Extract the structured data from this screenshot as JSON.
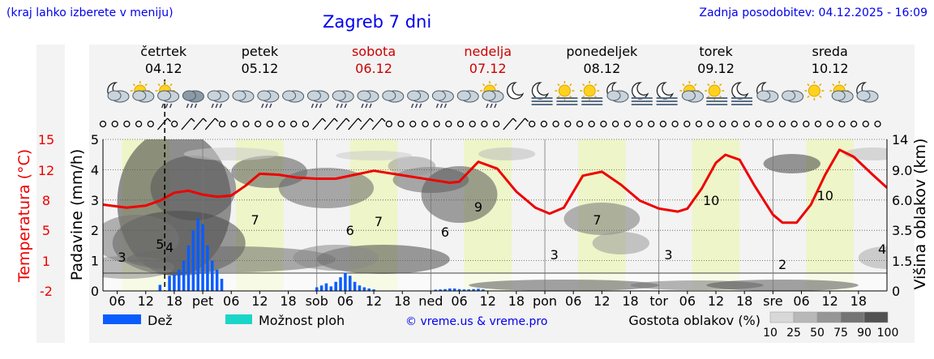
{
  "header": {
    "left_note": "(kraj lahko izberete v meniju)",
    "title": "Zagreb 7 dni",
    "updated": "Zadnja posodobitev: 04.12.2025 - 16:09"
  },
  "days": [
    {
      "name": "četrtek",
      "date": "04.12",
      "weekend": false
    },
    {
      "name": "petek",
      "date": "05.12",
      "weekend": false
    },
    {
      "name": "sobota",
      "date": "06.12",
      "weekend": true
    },
    {
      "name": "nedelja",
      "date": "07.12",
      "weekend": true
    },
    {
      "name": "ponedeljek",
      "date": "08.12",
      "weekend": false
    },
    {
      "name": "torek",
      "date": "09.12",
      "weekend": false
    },
    {
      "name": "sreda",
      "date": "10.12",
      "weekend": false
    }
  ],
  "colors": {
    "weekday": "#000000",
    "weekend": "#cc0000",
    "temperature": "#ee0000",
    "rain": "#0a5cff",
    "shower": "#19d6c8",
    "daytime": "#eef5c8",
    "grid": "#999999",
    "blue_text": "#0000ee"
  },
  "icons": [
    "moon-cloud-icon",
    "sun-cloud-icon",
    "sun-cloud-rain-icon",
    "cloud-heavy-rain-icon",
    "cloud-rain-icon",
    "cloud-icon",
    "cloud-rain-icon",
    "cloud-icon",
    "cloud-rain-icon",
    "cloud-rain-icon",
    "cloud-rain-icon",
    "cloud-icon",
    "cloud-rain-icon",
    "cloud-rain-icon",
    "cloud-icon",
    "sun-cloud-rain-icon",
    "moon-icon",
    "moon-fog-icon",
    "sun-fog-icon",
    "sun-fog-icon",
    "moon-cloud-icon",
    "moon-fog-icon",
    "moon-fog-icon",
    "sun-cloud-icon",
    "sun-fog-icon",
    "moon-fog-icon",
    "moon-cloud-icon",
    "cloud-icon",
    "sun-icon",
    "sun-cloud-icon",
    "moon-cloud-icon"
  ],
  "chart_data": {
    "type": "line",
    "title": "Zagreb 7 dni",
    "x_tick_labels": [
      "06",
      "12",
      "18",
      "pet",
      "06",
      "12",
      "18",
      "sob",
      "06",
      "12",
      "18",
      "ned",
      "06",
      "12",
      "18",
      "pon",
      "06",
      "12",
      "18",
      "tor",
      "06",
      "12",
      "18",
      "sre",
      "06",
      "12",
      "18"
    ],
    "x_hours": [
      6,
      12,
      18,
      24,
      30,
      36,
      42,
      48,
      54,
      60,
      66,
      72,
      78,
      84,
      90,
      96,
      102,
      108,
      114,
      120,
      126,
      132,
      138,
      144,
      150,
      156,
      162
    ],
    "x_range_hours": [
      3,
      168
    ],
    "now_hour": 16,
    "left_axis_1": {
      "label": "Temperatura (°C)",
      "ticks": [
        15,
        12,
        8,
        5,
        1,
        -2
      ]
    },
    "left_axis_2": {
      "label": "Padavine (mm/h)",
      "ticks": [
        0,
        1,
        2,
        3,
        4,
        5
      ],
      "range": [
        0,
        5
      ]
    },
    "right_axis": {
      "label": "Višina oblakov (km)",
      "ticks": [
        "0",
        "1.5",
        "3.5",
        "6.0",
        "9.0",
        "14"
      ]
    },
    "series": [
      {
        "kind": "temperature",
        "x_hours": [
          3,
          8,
          12,
          15,
          18,
          21,
          24,
          27,
          30,
          33,
          36,
          40,
          44,
          48,
          52,
          56,
          60,
          64,
          68,
          72,
          76,
          78,
          82,
          86,
          90,
          94,
          97,
          100,
          104,
          108,
          112,
          116,
          120,
          124,
          126,
          129,
          132,
          134,
          137,
          140,
          144,
          146,
          149,
          152,
          155,
          158,
          161,
          165,
          168
        ],
        "values": [
          4.6,
          4.3,
          4.5,
          5.0,
          5.8,
          6.0,
          5.6,
          5.4,
          5.5,
          6.5,
          7.7,
          7.6,
          7.3,
          7.2,
          7.2,
          7.6,
          8.0,
          7.7,
          7.4,
          7.1,
          6.8,
          6.9,
          8.9,
          8.2,
          5.9,
          4.3,
          3.7,
          4.3,
          7.5,
          7.9,
          6.6,
          5.0,
          4.2,
          3.9,
          4.2,
          6.2,
          8.8,
          9.6,
          9.1,
          6.6,
          3.6,
          2.8,
          2.8,
          4.6,
          7.6,
          10.1,
          9.4,
          7.6,
          6.3
        ]
      },
      {
        "kind": "precipitation_rain",
        "x_hours": [
          15,
          17,
          18,
          19,
          20,
          21,
          22,
          23,
          24,
          25,
          26,
          27,
          28,
          48,
          49,
          50,
          51,
          52,
          53,
          54,
          55,
          56,
          57,
          58,
          59,
          60,
          73,
          74,
          75,
          76,
          77,
          78,
          79,
          80,
          81,
          82,
          83
        ],
        "values": [
          0.2,
          0.5,
          0.55,
          0.7,
          1.0,
          1.5,
          2.0,
          2.4,
          2.2,
          1.5,
          1.0,
          0.7,
          0.4,
          0.12,
          0.18,
          0.25,
          0.15,
          0.3,
          0.45,
          0.6,
          0.5,
          0.3,
          0.18,
          0.12,
          0.08,
          0.05,
          0.04,
          0.05,
          0.06,
          0.08,
          0.08,
          0.06,
          0.05,
          0.05,
          0.06,
          0.07,
          0.05
        ]
      }
    ],
    "temperature_labels": [
      {
        "x_hour": 7,
        "value": "3"
      },
      {
        "x_hour": 15,
        "value": "5"
      },
      {
        "x_hour": 17,
        "value": "4"
      },
      {
        "x_hour": 35,
        "value": "7"
      },
      {
        "x_hour": 55,
        "value": "6"
      },
      {
        "x_hour": 61,
        "value": "7"
      },
      {
        "x_hour": 75,
        "value": "6"
      },
      {
        "x_hour": 82,
        "value": "9"
      },
      {
        "x_hour": 98,
        "value": "3"
      },
      {
        "x_hour": 107,
        "value": "7"
      },
      {
        "x_hour": 122,
        "value": "3"
      },
      {
        "x_hour": 131,
        "value": "10"
      },
      {
        "x_hour": 146,
        "value": "2"
      },
      {
        "x_hour": 155,
        "value": "10"
      },
      {
        "x_hour": 167,
        "value": "4"
      }
    ],
    "legend": {
      "rain": "Dež",
      "shower": "Možnost ploh",
      "copyright": "© vreme.us & vreme.pro",
      "cloud_density_label": "Gostota oblakov (%)",
      "cloud_density_levels": [
        "10",
        "25",
        "50",
        "75",
        "90",
        "100"
      ]
    },
    "grid": true
  }
}
